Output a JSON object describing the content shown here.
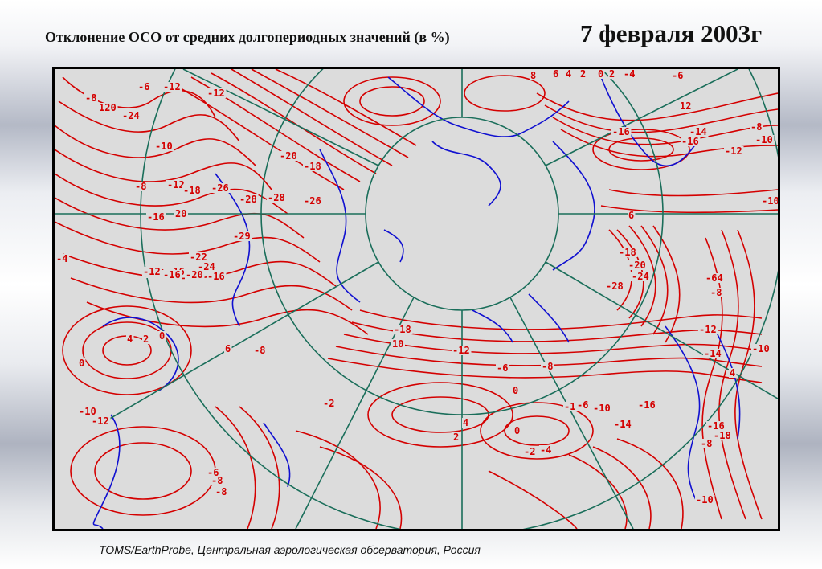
{
  "header": {
    "title": "Отклонение ОСО от средних долгопериодных значений (в %)",
    "date": "7 февраля 2003г"
  },
  "footer": {
    "source": "TOMS/EarthProbe, Центральная аэрологическая обсерватория, Россия"
  },
  "map": {
    "colors": {
      "background": "#dcdcdc",
      "contours": "#d40000",
      "coastlines": "#1010d0",
      "grid": "#1a6e5a"
    },
    "contour_labels": [
      "6",
      "-6",
      "-12",
      "120",
      "-24",
      "-12",
      "-10",
      "-8",
      "-12",
      "-18",
      "-26",
      "20",
      "-28",
      "-29",
      "-22",
      "-24",
      "-14",
      "-16",
      "-18",
      "-20",
      "-26",
      "-28",
      "-4",
      "-12",
      "-16",
      "-16",
      "-20",
      "-16",
      "0",
      "4",
      "2",
      "6",
      "-8",
      "0",
      "-10",
      "-12",
      "-8",
      "-2",
      "-6",
      "-8",
      "-18",
      "10",
      "-12",
      "-6",
      "-8",
      "0",
      "-12",
      "-6",
      "-10",
      "-16",
      "-14",
      "4",
      "2",
      "0",
      "-2",
      "-4",
      "8",
      "6",
      "4",
      "2",
      "0",
      "2",
      "-4",
      "-6",
      "12",
      "-16",
      "-14",
      "-16",
      "-12",
      "-8",
      "-10",
      "-10",
      "6",
      "-18",
      "-20",
      "-24",
      "-28",
      "-64",
      "-8",
      "-12",
      "-14",
      "-10",
      "4",
      "-16",
      "-18",
      "-8",
      "-10",
      "-8",
      "-6"
    ]
  }
}
